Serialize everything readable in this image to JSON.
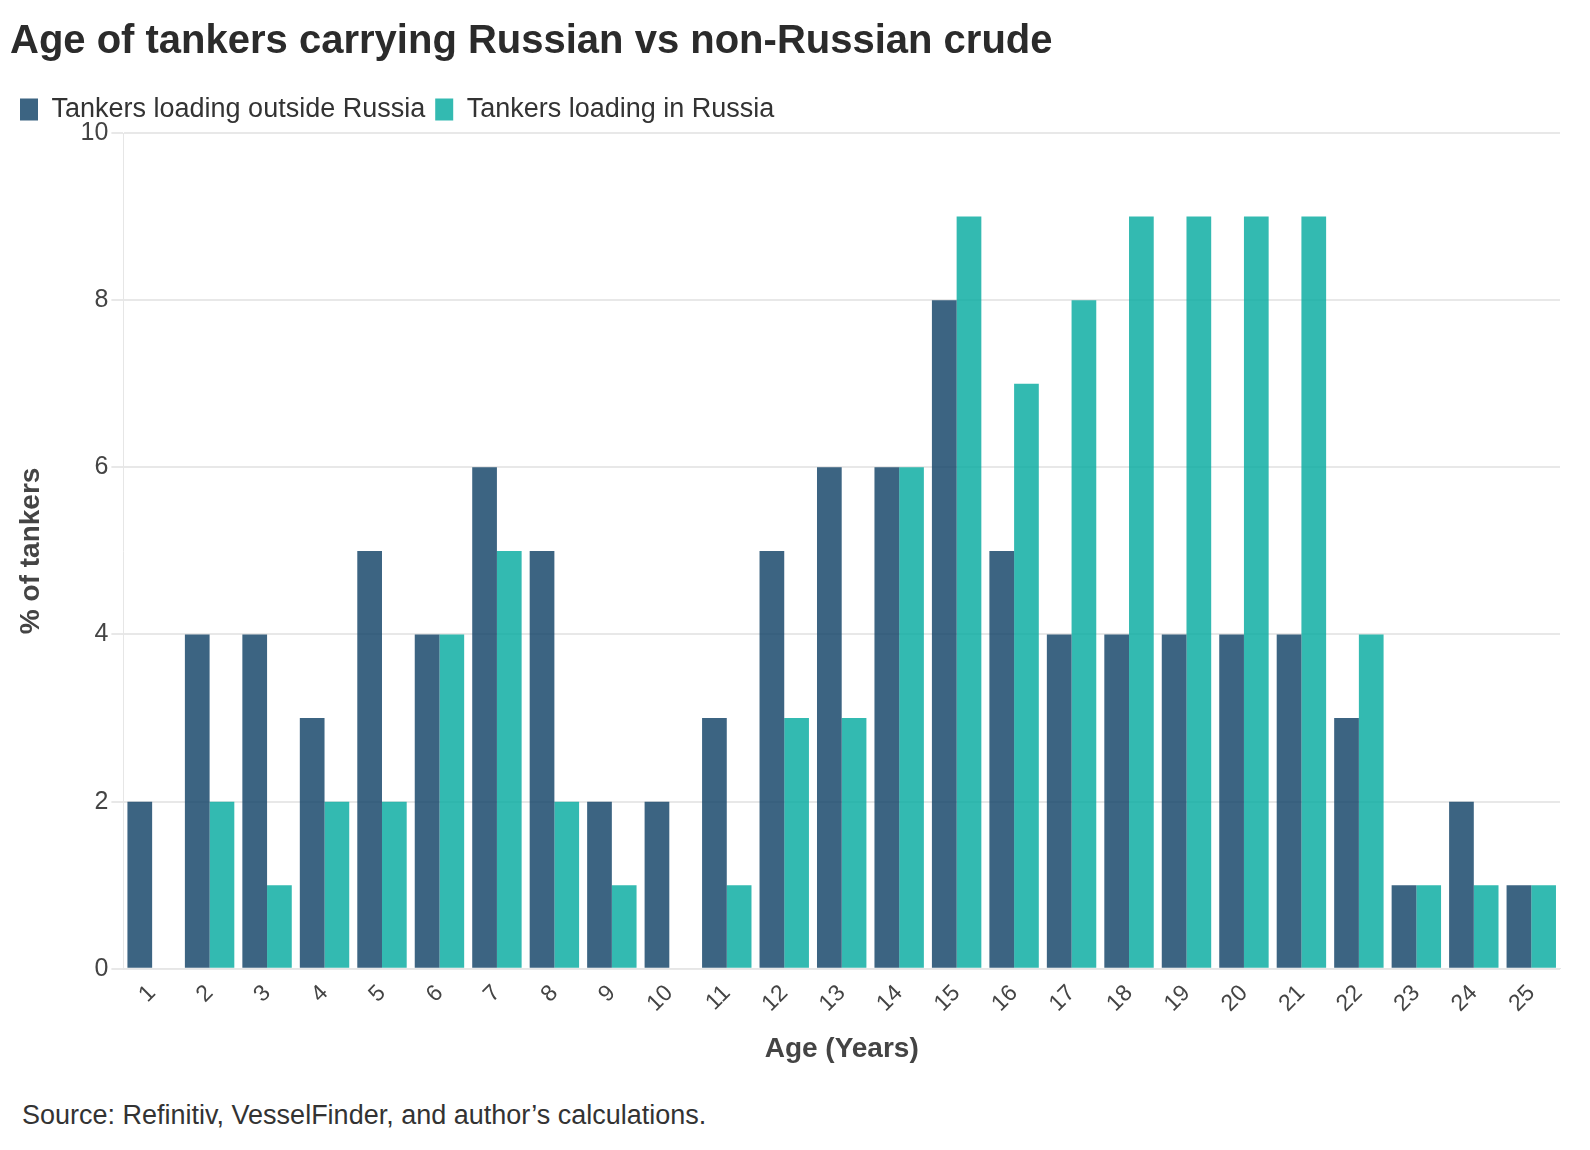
{
  "chart_data": {
    "type": "bar",
    "title": "Age of tankers carrying Russian vs non-Russian crude",
    "x_label": "Age (Years)",
    "y_label": "% of tankers",
    "source": "Source: Refinitiv, VesselFinder, and author’s calculations.",
    "categories": [
      "1",
      "2",
      "3",
      "4",
      "5",
      "6",
      "7",
      "8",
      "9",
      "10",
      "11",
      "12",
      "13",
      "14",
      "15",
      "16",
      "17",
      "18",
      "19",
      "20",
      "21",
      "22",
      "23",
      "24",
      "25"
    ],
    "series": [
      {
        "name": "Tankers loading outside Russia",
        "color": "#0b3d63",
        "values": [
          2,
          4,
          4,
          3,
          5,
          4,
          6,
          5,
          2,
          2,
          3,
          5,
          6,
          6,
          8,
          5,
          4,
          4,
          4,
          4,
          4,
          3,
          1,
          2,
          1
        ]
      },
      {
        "name": "Tankers loading in Russia",
        "color": "#00a99d",
        "values": [
          0,
          2,
          1,
          2,
          2,
          4,
          5,
          2,
          1,
          0,
          1,
          3,
          3,
          6,
          9,
          7,
          8,
          9,
          9,
          9,
          9,
          4,
          1,
          1,
          1
        ]
      }
    ],
    "ylim": [
      0,
      10
    ],
    "yticks": [
      0,
      2,
      4,
      6,
      8,
      10
    ],
    "grid": true,
    "legend": "top-left"
  }
}
